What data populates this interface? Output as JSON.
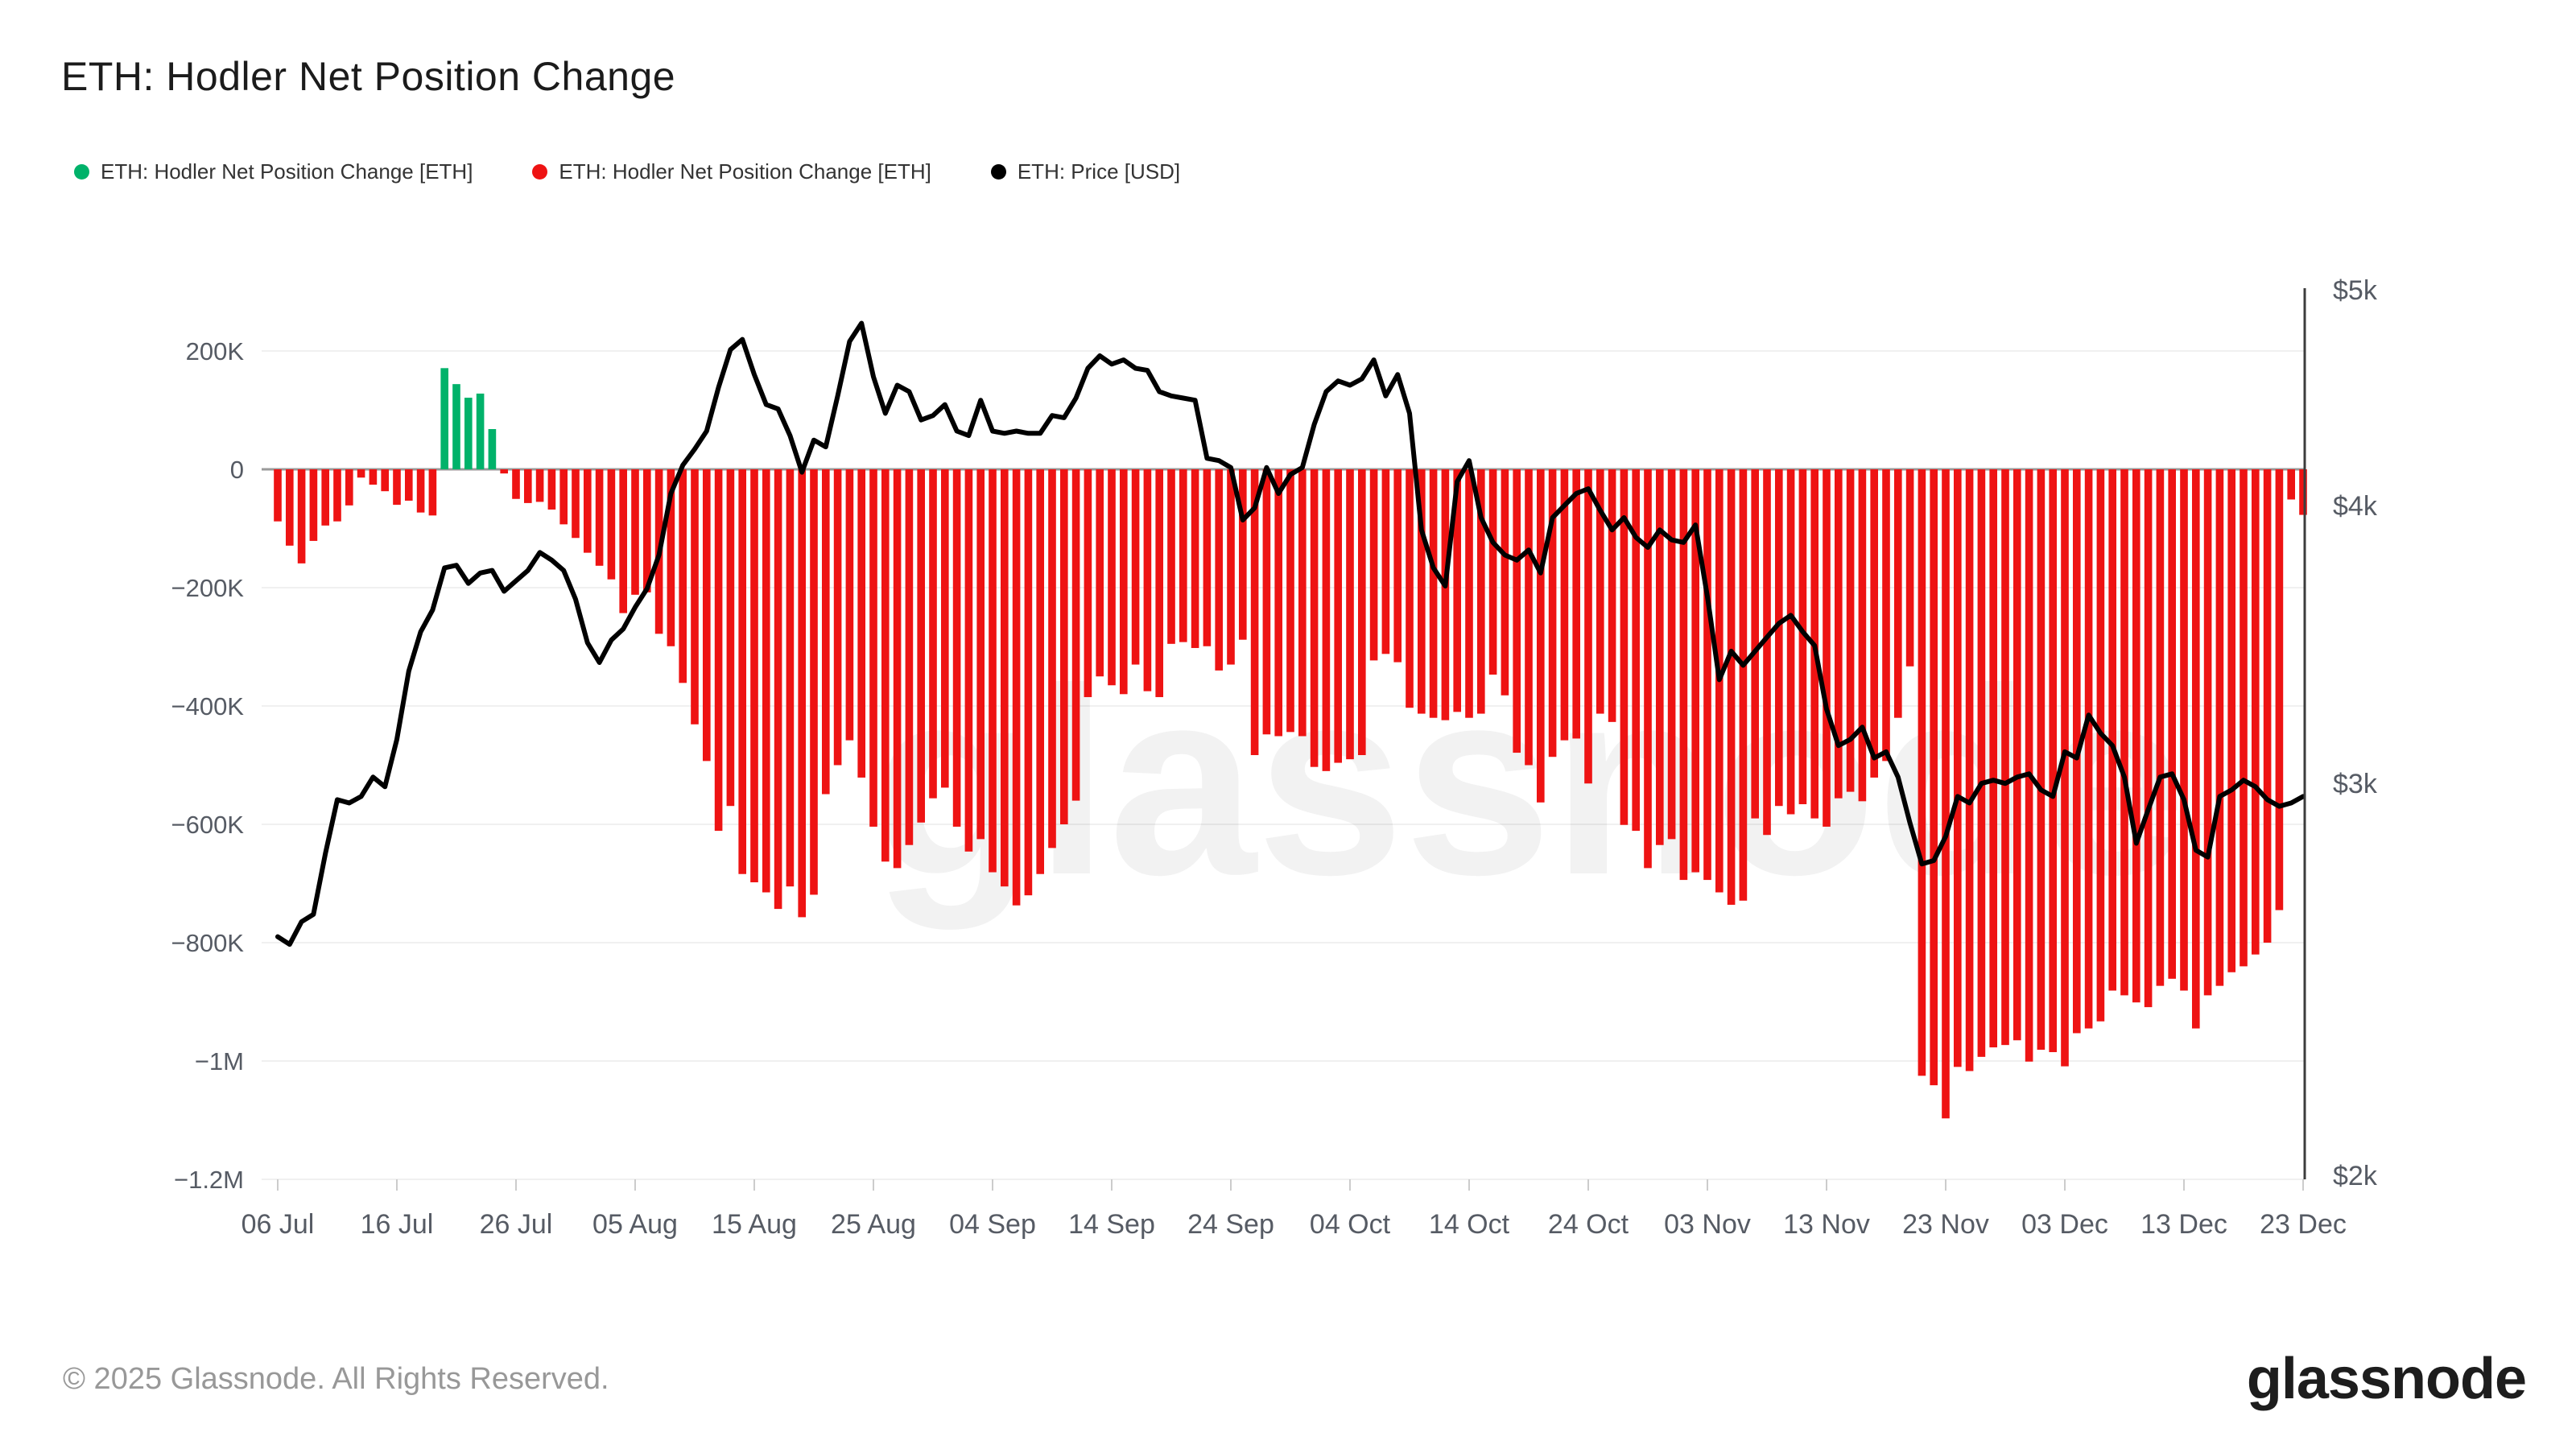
{
  "title": "ETH: Hodler Net Position Change",
  "legend": [
    {
      "label": "ETH: Hodler Net Position Change [ETH]",
      "color": "#00b26a",
      "icon": "green-dot-icon"
    },
    {
      "label": "ETH: Hodler Net Position Change [ETH]",
      "color": "#ee1313",
      "icon": "red-dot-icon"
    },
    {
      "label": "ETH: Price [USD]",
      "color": "#000000",
      "icon": "black-dot-icon"
    }
  ],
  "watermark": "glassnode",
  "footer": {
    "copyright": "© 2025 Glassnode. All Rights Reserved.",
    "logo_text": "glassnode"
  },
  "colors": {
    "positive": "#00b26a",
    "negative": "#ee1313",
    "price_line": "#000000",
    "grid": "#f0f0f0",
    "zero_line": "#9a9a9a",
    "right_axis_line": "#3c3c3c",
    "tick_mark": "#cccccc",
    "axis_text": "#565b64",
    "watermark": "rgba(0,0,0,0.05)"
  },
  "chart_data": {
    "type": "combo",
    "title": "ETH: Hodler Net Position Change",
    "x": {
      "tick_labels": [
        "06 Jul",
        "16 Jul",
        "26 Jul",
        "05 Aug",
        "15 Aug",
        "25 Aug",
        "04 Sep",
        "14 Sep",
        "24 Sep",
        "04 Oct",
        "14 Oct",
        "24 Oct",
        "03 Nov",
        "13 Nov",
        "23 Nov",
        "03 Dec",
        "13 Dec",
        "23 Dec"
      ],
      "dates": [
        "06 Jul",
        "07 Jul",
        "08 Jul",
        "09 Jul",
        "10 Jul",
        "11 Jul",
        "12 Jul",
        "13 Jul",
        "14 Jul",
        "15 Jul",
        "16 Jul",
        "17 Jul",
        "18 Jul",
        "19 Jul",
        "20 Jul",
        "21 Jul",
        "22 Jul",
        "23 Jul",
        "24 Jul",
        "25 Jul",
        "26 Jul",
        "27 Jul",
        "28 Jul",
        "29 Jul",
        "30 Jul",
        "31 Jul",
        "01 Aug",
        "02 Aug",
        "03 Aug",
        "04 Aug",
        "05 Aug",
        "06 Aug",
        "07 Aug",
        "08 Aug",
        "09 Aug",
        "10 Aug",
        "11 Aug",
        "12 Aug",
        "13 Aug",
        "14 Aug",
        "15 Aug",
        "16 Aug",
        "17 Aug",
        "18 Aug",
        "19 Aug",
        "20 Aug",
        "21 Aug",
        "22 Aug",
        "23 Aug",
        "24 Aug",
        "25 Aug",
        "26 Aug",
        "27 Aug",
        "28 Aug",
        "29 Aug",
        "30 Aug",
        "31 Aug",
        "01 Sep",
        "02 Sep",
        "03 Sep",
        "04 Sep",
        "05 Sep",
        "06 Sep",
        "07 Sep",
        "08 Sep",
        "09 Sep",
        "10 Sep",
        "11 Sep",
        "12 Sep",
        "13 Sep",
        "14 Sep",
        "15 Sep",
        "16 Sep",
        "17 Sep",
        "18 Sep",
        "19 Sep",
        "20 Sep",
        "21 Sep",
        "22 Sep",
        "23 Sep",
        "24 Sep",
        "25 Sep",
        "26 Sep",
        "27 Sep",
        "28 Sep",
        "29 Sep",
        "30 Sep",
        "01 Oct",
        "02 Oct",
        "03 Oct",
        "04 Oct",
        "05 Oct",
        "06 Oct",
        "07 Oct",
        "08 Oct",
        "09 Oct",
        "10 Oct",
        "11 Oct",
        "12 Oct",
        "13 Oct",
        "14 Oct",
        "15 Oct",
        "16 Oct",
        "17 Oct",
        "18 Oct",
        "19 Oct",
        "20 Oct",
        "21 Oct",
        "22 Oct",
        "23 Oct",
        "24 Oct",
        "25 Oct",
        "26 Oct",
        "27 Oct",
        "28 Oct",
        "29 Oct",
        "30 Oct",
        "31 Oct",
        "01 Nov",
        "02 Nov",
        "03 Nov",
        "04 Nov",
        "05 Nov",
        "06 Nov",
        "07 Nov",
        "08 Nov",
        "09 Nov",
        "10 Nov",
        "11 Nov",
        "12 Nov",
        "13 Nov",
        "14 Nov",
        "15 Nov",
        "16 Nov",
        "17 Nov",
        "18 Nov",
        "19 Nov",
        "20 Nov",
        "21 Nov",
        "22 Nov",
        "23 Nov",
        "24 Nov",
        "25 Nov",
        "26 Nov",
        "27 Nov",
        "28 Nov",
        "29 Nov",
        "30 Nov",
        "01 Dec",
        "02 Dec",
        "03 Dec",
        "04 Dec",
        "05 Dec",
        "06 Dec",
        "07 Dec",
        "08 Dec",
        "09 Dec",
        "10 Dec",
        "11 Dec",
        "12 Dec",
        "13 Dec",
        "14 Dec",
        "15 Dec",
        "16 Dec",
        "17 Dec",
        "18 Dec",
        "19 Dec",
        "20 Dec",
        "21 Dec",
        "22 Dec",
        "23 Dec"
      ]
    },
    "series": [
      {
        "name": "ETH: Hodler Net Position Change [ETH]",
        "type": "bar",
        "units": "thousand ETH",
        "axis": "left",
        "values": [
          -88,
          -129,
          -159,
          -121,
          -95,
          -88,
          -61,
          -14,
          -26,
          -37,
          -60,
          -53,
          -73,
          -78,
          171,
          144,
          121,
          128,
          68,
          -7,
          -50,
          -57,
          -55,
          -68,
          -93,
          -116,
          -141,
          -163,
          -186,
          -243,
          -212,
          -208,
          -278,
          -299,
          -361,
          -431,
          -493,
          -611,
          -569,
          -684,
          -698,
          -715,
          -743,
          -705,
          -757,
          -719,
          -549,
          -500,
          -458,
          -521,
          -604,
          -663,
          -674,
          -635,
          -597,
          -556,
          -538,
          -604,
          -646,
          -625,
          -681,
          -705,
          -737,
          -720,
          -684,
          -640,
          -600,
          -560,
          -385,
          -350,
          -365,
          -380,
          -330,
          -375,
          -385,
          -295,
          -292,
          -302,
          -299,
          -340,
          -330,
          -288,
          -483,
          -448,
          -451,
          -444,
          -451,
          -503,
          -510,
          -496,
          -490,
          -483,
          -323,
          -312,
          -326,
          -403,
          -413,
          -420,
          -424,
          -410,
          -420,
          -413,
          -347,
          -382,
          -479,
          -500,
          -563,
          -486,
          -458,
          -455,
          -531,
          -413,
          -427,
          -601,
          -611,
          -674,
          -635,
          -625,
          -694,
          -681,
          -694,
          -715,
          -736,
          -729,
          -590,
          -618,
          -569,
          -583,
          -566,
          -590,
          -604,
          -556,
          -545,
          -561,
          -521,
          -493,
          -420,
          -333,
          -1025,
          -1041,
          -1097,
          -1010,
          -1017,
          -993,
          -977,
          -973,
          -965,
          -1001,
          -981,
          -985,
          -1009,
          -953,
          -945,
          -933,
          -881,
          -889,
          -901,
          -909,
          -873,
          -861,
          -881,
          -945,
          -889,
          -873,
          -850,
          -840,
          -820,
          -800,
          -745,
          -51,
          -77
        ]
      },
      {
        "name": "ETH: Price [USD]",
        "type": "line",
        "units": "USD",
        "axis": "right",
        "scale": "log",
        "values": [
          2560,
          2540,
          2600,
          2620,
          2790,
          2950,
          2940,
          2960,
          3020,
          2990,
          3140,
          3370,
          3510,
          3590,
          3750,
          3760,
          3690,
          3730,
          3740,
          3660,
          3700,
          3740,
          3810,
          3780,
          3740,
          3630,
          3470,
          3400,
          3480,
          3520,
          3600,
          3670,
          3800,
          4050,
          4170,
          4240,
          4320,
          4520,
          4700,
          4750,
          4580,
          4440,
          4420,
          4300,
          4140,
          4280,
          4250,
          4480,
          4740,
          4830,
          4570,
          4400,
          4530,
          4500,
          4370,
          4390,
          4440,
          4320,
          4300,
          4460,
          4320,
          4310,
          4320,
          4310,
          4310,
          4390,
          4380,
          4470,
          4610,
          4670,
          4630,
          4650,
          4610,
          4600,
          4500,
          4480,
          4470,
          4460,
          4200,
          4190,
          4160,
          3940,
          3990,
          4160,
          4050,
          4130,
          4160,
          4350,
          4500,
          4550,
          4530,
          4560,
          4650,
          4480,
          4580,
          4400,
          3900,
          3750,
          3680,
          4100,
          4190,
          3950,
          3850,
          3800,
          3780,
          3820,
          3730,
          3950,
          4000,
          4050,
          4070,
          3980,
          3900,
          3950,
          3870,
          3830,
          3900,
          3860,
          3850,
          3920,
          3640,
          3340,
          3440,
          3390,
          3440,
          3490,
          3540,
          3570,
          3510,
          3460,
          3240,
          3120,
          3140,
          3180,
          3080,
          3100,
          3020,
          2880,
          2760,
          2770,
          2840,
          2960,
          2940,
          3000,
          3010,
          3000,
          3020,
          3030,
          2980,
          2960,
          3100,
          3080,
          3220,
          3160,
          3120,
          3020,
          2820,
          2920,
          3020,
          3030,
          2950,
          2800,
          2780,
          2960,
          2980,
          3010,
          2990,
          2950,
          2930,
          2940,
          2960
        ]
      }
    ],
    "left_axis": {
      "labels": [
        "200K",
        "0",
        "−200K",
        "−400K",
        "−600K",
        "−800K",
        "−1M",
        "−1.2M"
      ],
      "values_thousand_eth": [
        200,
        0,
        -200,
        -400,
        -600,
        -800,
        -1000,
        -1200
      ],
      "ylim_thousand_eth": [
        -1200,
        300
      ],
      "grid": true
    },
    "right_axis": {
      "labels": [
        "$5k",
        "$4k",
        "$3k",
        "$2k"
      ],
      "values_usd": [
        5000,
        4000,
        3000,
        2000
      ],
      "scale": "log",
      "ylim_usd": [
        2000,
        5000
      ]
    },
    "legend_position": "top-left"
  }
}
